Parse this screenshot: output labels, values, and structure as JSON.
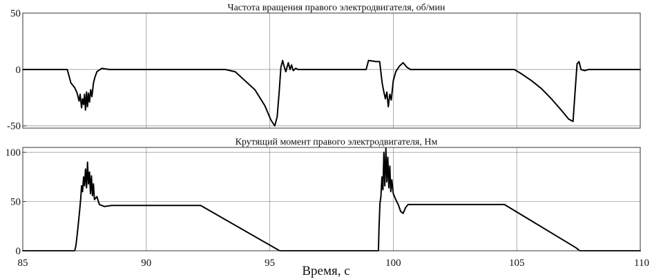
{
  "chart_data": [
    {
      "type": "line",
      "title": "Частота вращения правого электродвигателя, об/мин",
      "xlabel": "",
      "ylabel": "",
      "xlim": [
        85,
        110
      ],
      "ylim": [
        -52,
        50
      ],
      "yticks": [
        -50,
        0,
        50
      ],
      "ytick_labels": [
        "-50",
        "0",
        "50"
      ],
      "grid": true,
      "series": [
        {
          "x": [
            85.0,
            86.8,
            86.95,
            87.1,
            87.2,
            87.28,
            87.32,
            87.38,
            87.42,
            87.46,
            87.5,
            87.54,
            87.58,
            87.62,
            87.66,
            87.7,
            87.75,
            87.8,
            87.86,
            87.92,
            88.0,
            88.2,
            88.5,
            91.0,
            93.2,
            93.6,
            94.0,
            94.4,
            94.8,
            95.05,
            95.2,
            95.3,
            95.38,
            95.45,
            95.52,
            95.58,
            95.65,
            95.75,
            95.82,
            95.88,
            95.95,
            96.05,
            96.15,
            96.3,
            96.5,
            98.9,
            99.0,
            99.3,
            99.45,
            99.55,
            99.62,
            99.68,
            99.74,
            99.8,
            99.86,
            99.92,
            100.0,
            100.1,
            100.25,
            100.4,
            100.55,
            100.7,
            104.9,
            105.2,
            105.6,
            106.0,
            106.4,
            106.8,
            107.1,
            107.28,
            107.36,
            107.44,
            107.52,
            107.6,
            107.75,
            107.9,
            110.0
          ],
          "y": [
            0,
            0,
            -12,
            -16,
            -21,
            -28,
            -22,
            -34,
            -26,
            -31,
            -22,
            -36,
            -20,
            -33,
            -21,
            -29,
            -18,
            -24,
            -12,
            -7,
            -2,
            1,
            0,
            0,
            0,
            -2,
            -10,
            -18,
            -32,
            -45,
            -50,
            -42,
            -20,
            2,
            8,
            3,
            -2,
            6,
            0,
            4,
            -1,
            1,
            0,
            0,
            0,
            0,
            8,
            7,
            7,
            -12,
            -20,
            -26,
            -20,
            -33,
            -22,
            -27,
            -10,
            -2,
            3,
            6,
            2,
            0,
            0,
            -4,
            -10,
            -17,
            -26,
            -36,
            -44,
            -46,
            -20,
            5,
            7,
            0,
            -1,
            0,
            0
          ]
        }
      ]
    },
    {
      "type": "line",
      "title": "Крутящий момент правого электродвигателя, Нм",
      "xlabel": "Время, с",
      "ylabel": "",
      "xlim": [
        85,
        110
      ],
      "ylim": [
        0,
        105
      ],
      "yticks": [
        0,
        50,
        100
      ],
      "ytick_labels": [
        "0",
        "50",
        "100"
      ],
      "xticks": [
        85,
        90,
        95,
        100,
        105,
        110
      ],
      "xtick_labels": [
        "85",
        "90",
        "95",
        "100",
        "105",
        "110"
      ],
      "grid": true,
      "series": [
        {
          "x": [
            85.0,
            87.1,
            87.15,
            87.2,
            87.25,
            87.3,
            87.35,
            87.38,
            87.42,
            87.46,
            87.5,
            87.54,
            87.58,
            87.62,
            87.66,
            87.7,
            87.74,
            87.78,
            87.82,
            87.86,
            87.9,
            88.0,
            88.1,
            88.3,
            88.6,
            92.2,
            95.4,
            99.4,
            99.42,
            99.46,
            99.5,
            99.54,
            99.58,
            99.62,
            99.66,
            99.7,
            99.74,
            99.78,
            99.82,
            99.86,
            99.9,
            99.94,
            100.0,
            100.1,
            100.2,
            100.3,
            100.4,
            100.5,
            100.6,
            104.5,
            107.4,
            107.55,
            110.0
          ],
          "y": [
            0,
            0,
            5,
            16,
            28,
            40,
            54,
            66,
            60,
            75,
            66,
            83,
            64,
            90,
            68,
            80,
            58,
            76,
            56,
            68,
            52,
            55,
            47,
            45,
            46,
            46,
            0,
            0,
            22,
            48,
            55,
            75,
            62,
            100,
            66,
            104,
            70,
            95,
            64,
            86,
            60,
            72,
            58,
            52,
            47,
            40,
            38,
            44,
            47,
            47,
            3,
            0,
            0
          ]
        }
      ]
    }
  ]
}
